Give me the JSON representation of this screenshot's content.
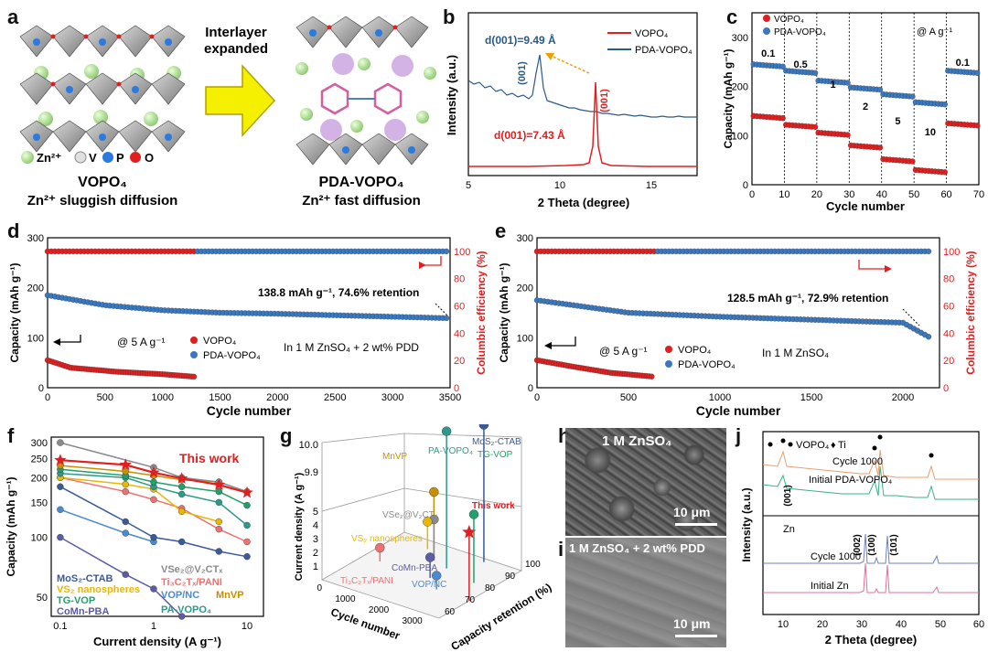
{
  "panel_a": {
    "letter": "a",
    "arrow_text": [
      "Interlayer",
      "expanded"
    ],
    "legend": [
      "Zn²⁺",
      "V",
      "P",
      "O"
    ],
    "left_title": "VOPO₄",
    "left_sub": "Zn²⁺ sluggish diffusion",
    "right_title": "PDA-VOPO₄",
    "right_sub": "Zn²⁺ fast diffusion"
  },
  "panel_b": {
    "letter": "b",
    "legend": [
      "VOPO₄",
      "PDA-VOPO₄"
    ],
    "ylabel": "Intensity (a.u.)",
    "xlabel": "2 Theta (degree)",
    "xticks": [
      "5",
      "10",
      "15"
    ],
    "d_top": "d(001)=9.49 Å",
    "d_bottom": "d(001)=7.43 Å",
    "peak_label": "(001)"
  },
  "panel_c": {
    "letter": "c",
    "legend": [
      "VOPO₄",
      "PDA-VOPO₄"
    ],
    "unit_note": "@ A g⁻¹",
    "rate_labels": [
      "0.1",
      "0.5",
      "1",
      "2",
      "5",
      "10",
      "0.1"
    ],
    "ylabel": "Capacity (mAh g⁻¹)",
    "xlabel": "Cycle number",
    "xticks": [
      "0",
      "10",
      "20",
      "30",
      "40",
      "50",
      "60",
      "70"
    ],
    "yticks": [
      "0",
      "100",
      "200",
      "300"
    ]
  },
  "panel_d": {
    "letter": "d",
    "ylabel": "Capacity (mAh g⁻¹)",
    "ylabel_right": "Columbic efficiency (%)",
    "xlabel": "Cycle number",
    "xticks": [
      "0",
      "500",
      "1000",
      "1500",
      "2000",
      "2500",
      "3000",
      "3500"
    ],
    "yticks": [
      "0",
      "100",
      "200",
      "300"
    ],
    "yticks_right": [
      "0",
      "20",
      "40",
      "60",
      "80",
      "100"
    ],
    "annotation": "138.8 mAh g⁻¹, 74.6% retention",
    "rate": "@ 5 A g⁻¹",
    "legend": [
      "VOPO₄",
      "PDA-VOPO₄"
    ],
    "electrolyte": "In 1 M ZnSO₄ + 2 wt% PDD"
  },
  "panel_e": {
    "letter": "e",
    "ylabel": "Capacity (mAh g⁻¹)",
    "ylabel_right": "Columbic efficiency (%)",
    "xlabel": "Cycle number",
    "xticks": [
      "0",
      "500",
      "1000",
      "1500",
      "2000"
    ],
    "yticks": [
      "0",
      "100",
      "200",
      "300"
    ],
    "yticks_right": [
      "0",
      "20",
      "40",
      "60",
      "80",
      "100"
    ],
    "annotation": "128.5 mAh g⁻¹, 72.9% retention",
    "rate": "@ 5 A g⁻¹",
    "legend": [
      "VOPO₄",
      "PDA-VOPO₄"
    ],
    "electrolyte": "In 1 M ZnSO₄"
  },
  "panel_f": {
    "letter": "f",
    "ylabel": "Capacity (mAh g⁻¹)",
    "xlabel": "Current density (A g⁻¹)",
    "xticks": [
      "0.1",
      "1",
      "10"
    ],
    "yticks": [
      "50",
      "100",
      "150",
      "200",
      "250",
      "300"
    ],
    "this_work": "This work",
    "legend": [
      {
        "name": "MoS₂-CTAB",
        "color": "#3a5a9a"
      },
      {
        "name": "VS₂ nanospheres",
        "color": "#e8b800"
      },
      {
        "name": "TG-VOP",
        "color": "#22a06b"
      },
      {
        "name": "CoMn-PBA",
        "color": "#5b5ba8"
      },
      {
        "name": "VSe₂@V₂CTₓ",
        "color": "#8a8a8a"
      },
      {
        "name": "Ti₃C₂Tₓ/PANI",
        "color": "#f07070"
      },
      {
        "name": "VOP/NC",
        "color": "#4a8ad0"
      },
      {
        "name": "PA-VOPO₄",
        "color": "#2a9a8a"
      },
      {
        "name": "MnVP",
        "color": "#c89000"
      }
    ]
  },
  "panel_g": {
    "letter": "g",
    "zlabel": "Current density (A g⁻¹)",
    "xlabel": "Cycle number",
    "ylabel": "Capacity retention (%)",
    "zticks": [
      "1",
      "2",
      "3",
      "4",
      "5",
      "9.9",
      "10.0"
    ],
    "xticks": [
      "0",
      "1000",
      "2000",
      "3000"
    ],
    "yticks": [
      "60",
      "70",
      "80",
      "90",
      "100"
    ],
    "labels": [
      "MnVP",
      "PA-VOPO₄",
      "MoS₂-CTAB",
      "TG-VOP",
      "This work",
      "VSe₂@V₂CTₓ",
      "VS₂ nanospheres",
      "CoMn-PBA",
      "Ti₃C₂Tₓ/PANI",
      "VOP/NC"
    ]
  },
  "panel_h": {
    "letter": "h",
    "label": "1 M ZnSO₄",
    "scale": "10 μm"
  },
  "panel_i": {
    "letter": "i",
    "label": "1 M ZnSO₄ + 2 wt% PDD",
    "scale": "10 μm"
  },
  "panel_j": {
    "letter": "j",
    "legend": [
      "VOPO₄",
      "Ti"
    ],
    "top_curves": [
      "Cycle 1000",
      "Initial PDA-VOPO₄"
    ],
    "peak_label": "(001)",
    "zn": "Zn",
    "zn_peaks": [
      "(002)",
      "(100)",
      "(101)"
    ],
    "bottom_curves": [
      "Cycle 1000",
      "Initial Zn"
    ],
    "ylabel": "Intensity (a.u.)",
    "xlabel": "2 Theta (degree)",
    "xticks": [
      "10",
      "20",
      "30",
      "40",
      "50",
      "60"
    ]
  },
  "chart_data": [
    {
      "id": "b",
      "type": "line",
      "xlabel": "2 Theta (degree)",
      "ylabel": "Intensity (a.u.)",
      "xlim": [
        5,
        17.5
      ],
      "series": [
        {
          "name": "VOPO₄",
          "peak_x": 11.9,
          "color": "#e02020"
        },
        {
          "name": "PDA-VOPO₄",
          "peak_x": 9.3,
          "color": "#2a5a8a"
        }
      ]
    },
    {
      "id": "c",
      "type": "scatter",
      "xlabel": "Cycle number",
      "ylabel": "Capacity (mAh g⁻¹)",
      "xlim": [
        0,
        70
      ],
      "ylim": [
        0,
        350
      ],
      "rates_A_g": [
        0.1,
        0.5,
        1,
        2,
        5,
        10,
        0.1
      ],
      "series": [
        {
          "name": "PDA-VOPO₄",
          "values": [
            245,
            232,
            212,
            198,
            184,
            168,
            232
          ],
          "color": "#3a78c0"
        },
        {
          "name": "VOPO₄",
          "values": [
            140,
            122,
            106,
            80,
            52,
            30,
            125
          ],
          "color": "#e02020"
        }
      ]
    },
    {
      "id": "d",
      "type": "scatter",
      "xlabel": "Cycle number",
      "ylabel": "Capacity (mAh g⁻¹)",
      "ylabel_right": "Columbic efficiency (%)",
      "xlim": [
        0,
        3500
      ],
      "ylim": [
        0,
        300
      ],
      "ylim_right": [
        0,
        110
      ],
      "series": [
        {
          "name": "PDA-VOPO₄",
          "x": [
            0,
            500,
            1000,
            1500,
            2000,
            2500,
            3000,
            3500
          ],
          "values": [
            185,
            165,
            155,
            150,
            148,
            145,
            142,
            139
          ],
          "color": "#3a78c0"
        },
        {
          "name": "VOPO₄",
          "x": [
            0,
            200,
            600,
            1000,
            1280
          ],
          "values": [
            55,
            40,
            32,
            27,
            22
          ],
          "color": "#e02020"
        }
      ]
    },
    {
      "id": "e",
      "type": "scatter",
      "xlabel": "Cycle number",
      "ylabel": "Capacity (mAh g⁻¹)",
      "ylabel_right": "Columbic efficiency (%)",
      "xlim": [
        0,
        2200
      ],
      "ylim": [
        0,
        300
      ],
      "ylim_right": [
        0,
        110
      ],
      "series": [
        {
          "name": "PDA-VOPO₄",
          "x": [
            0,
            500,
            1000,
            1500,
            2000,
            2150
          ],
          "values": [
            175,
            150,
            142,
            136,
            130,
            100
          ],
          "color": "#3a78c0"
        },
        {
          "name": "VOPO₄",
          "x": [
            0,
            200,
            400,
            640
          ],
          "values": [
            55,
            42,
            30,
            22
          ],
          "color": "#e02020"
        }
      ]
    },
    {
      "id": "f",
      "type": "line",
      "xscale": "log",
      "yscale": "log",
      "xlabel": "Current density (A g⁻¹)",
      "ylabel": "Capacity (mAh g⁻¹)",
      "xlim": [
        0.08,
        15
      ],
      "ylim": [
        40,
        320
      ],
      "series": [
        {
          "name": "This work",
          "x": [
            0.1,
            0.5,
            1,
            2,
            5,
            10
          ],
          "values": [
            245,
            232,
            212,
            198,
            184,
            168
          ],
          "color": "#e02020"
        },
        {
          "name": "VSe₂@V₂CTₓ",
          "x": [
            0.1,
            1,
            2,
            5,
            10
          ],
          "values": [
            300,
            225,
            200,
            190,
            170
          ],
          "color": "#8a8a8a"
        },
        {
          "name": "MnVP",
          "x": [
            0.1,
            0.5,
            1,
            2,
            5
          ],
          "values": [
            230,
            215,
            205,
            195,
            190
          ],
          "color": "#c89000"
        },
        {
          "name": "TG-VOP",
          "x": [
            0.1,
            0.5,
            1,
            2,
            5,
            10
          ],
          "values": [
            220,
            205,
            190,
            180,
            170,
            145
          ],
          "color": "#22a06b"
        },
        {
          "name": "PA-VOPO₄",
          "x": [
            0.1,
            0.5,
            1,
            2,
            5,
            10
          ],
          "values": [
            210,
            200,
            180,
            165,
            150,
            115
          ],
          "color": "#2a9a8a"
        },
        {
          "name": "VS₂ nanospheres",
          "x": [
            0.1,
            0.5,
            1,
            2,
            5
          ],
          "values": [
            200,
            185,
            175,
            135,
            120
          ],
          "color": "#e8b800"
        },
        {
          "name": "Ti₃C₂Tₓ/PANI",
          "x": [
            0.1,
            0.5,
            1,
            2,
            5,
            10
          ],
          "values": [
            200,
            170,
            155,
            140,
            110,
            95
          ],
          "color": "#f07070"
        },
        {
          "name": "MoS₂-CTAB",
          "x": [
            0.1,
            0.5,
            1,
            2,
            5,
            10
          ],
          "values": [
            180,
            120,
            100,
            95,
            85,
            80
          ],
          "color": "#3a5a9a"
        },
        {
          "name": "VOP/NC",
          "x": [
            0.1,
            0.5,
            1
          ],
          "values": [
            138,
            105,
            95
          ],
          "color": "#4a8ad0"
        },
        {
          "name": "CoMn-PBA",
          "x": [
            0.1,
            0.5,
            1,
            2
          ],
          "values": [
            100,
            65,
            55,
            40
          ],
          "color": "#5b5ba8"
        }
      ]
    },
    {
      "id": "g",
      "type": "scatter",
      "xlabel": "Cycle number",
      "ylabel": "Capacity retention (%)",
      "zlabel": "Current density (A g⁻¹)",
      "points": [
        {
          "name": "This work",
          "cycle": 3500,
          "retention": 74.6,
          "current": 5,
          "color": "#e02020"
        },
        {
          "name": "MoS₂-CTAB",
          "cycle": 2500,
          "retention": 98,
          "current": 10,
          "color": "#3a5a9a"
        },
        {
          "name": "PA-VOPO₄",
          "cycle": 2000,
          "retention": 88,
          "current": 10,
          "color": "#2a9a8a"
        },
        {
          "name": "MnVP",
          "cycle": 1500,
          "retention": 90,
          "current": 5,
          "color": "#c89000"
        },
        {
          "name": "TG-VOP",
          "cycle": 3000,
          "retention": 85,
          "current": 5,
          "color": "#22a06b"
        },
        {
          "name": "VSe₂@V₂CTₓ",
          "cycle": 1500,
          "retention": 90,
          "current": 3,
          "color": "#8a8a8a"
        },
        {
          "name": "VS₂ nanospheres",
          "cycle": 1000,
          "retention": 95,
          "current": 2,
          "color": "#e8b800"
        },
        {
          "name": "CoMn-PBA",
          "cycle": 2000,
          "retention": 80,
          "current": 1.5,
          "color": "#5b5ba8"
        },
        {
          "name": "Ti₃C₂Tₓ/PANI",
          "cycle": 500,
          "retention": 80,
          "current": 1,
          "color": "#f07070"
        },
        {
          "name": "VOP/NC",
          "cycle": 2500,
          "retention": 75,
          "current": 1,
          "color": "#4a8ad0"
        }
      ]
    },
    {
      "id": "j",
      "type": "line",
      "xlabel": "2 Theta (degree)",
      "ylabel": "Intensity (a.u.)",
      "xlim": [
        5,
        60
      ],
      "series": [
        {
          "name": "Cycle 1000",
          "group": "PDA-VOPO₄",
          "color": "#e8a070"
        },
        {
          "name": "Initial PDA-VOPO₄",
          "group": "PDA-VOPO₄",
          "color": "#3ab08a"
        },
        {
          "name": "Cycle 1000",
          "group": "Zn",
          "color": "#7080c0"
        },
        {
          "name": "Initial Zn",
          "group": "Zn",
          "color": "#e070a0"
        }
      ],
      "zn_peaks_x": [
        36.3,
        39.0,
        43.2
      ]
    }
  ]
}
